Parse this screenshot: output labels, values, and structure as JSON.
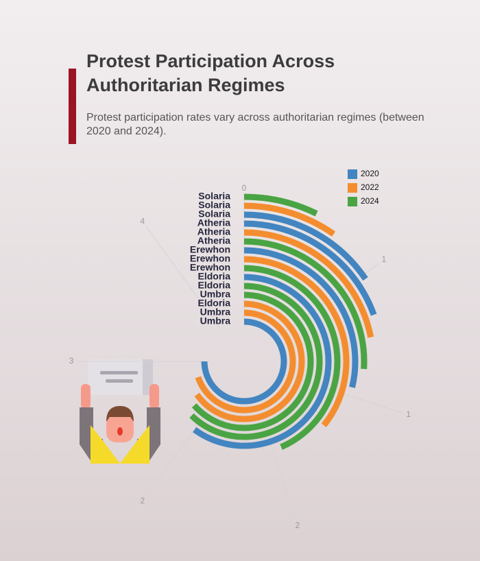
{
  "chart_data": {
    "type": "radial-bar",
    "title": "Protest Participation Across Authoritarian Regimes",
    "subtitle": "Protest participation rates vary across authoritarian regimes (between 2020 and 2024).",
    "categories": [
      "Solaria",
      "Solaria",
      "Solaria",
      "Atheria",
      "Atheria",
      "Atheria",
      "Erewhon",
      "Erewhon",
      "Erewhon",
      "Eldoria",
      "Eldoria",
      "Umbra",
      "Eldoria",
      "Umbra",
      "Umbra"
    ],
    "series": [
      {
        "name": "2020",
        "color": "#4285c0",
        "values": [
          null,
          null,
          0.62,
          0.78,
          null,
          null,
          1.15,
          null,
          null,
          2.4,
          null,
          null,
          null,
          null,
          3.0
        ]
      },
      {
        "name": "2022",
        "color": "#f48d2f",
        "values": [
          null,
          0.39,
          null,
          null,
          0.88,
          null,
          null,
          1.43,
          null,
          null,
          null,
          null,
          2.61,
          2.79,
          null
        ]
      },
      {
        "name": "2024",
        "color": "#4aa444",
        "values": [
          0.29,
          null,
          null,
          null,
          null,
          1.04,
          null,
          null,
          1.74,
          null,
          2.49,
          2.54,
          null,
          null,
          null
        ]
      }
    ],
    "xlim": [
      0,
      4
    ],
    "xticks": [
      0,
      {
        "value": 0.6,
        "label": "1"
      },
      {
        "value": 1.2,
        "label": "1"
      },
      {
        "value": 1.8,
        "label": "2"
      },
      {
        "value": 2.4,
        "label": "2"
      },
      {
        "value": 3.0,
        "label": "3"
      },
      {
        "value": 3.6,
        "label": "4"
      }
    ]
  }
}
